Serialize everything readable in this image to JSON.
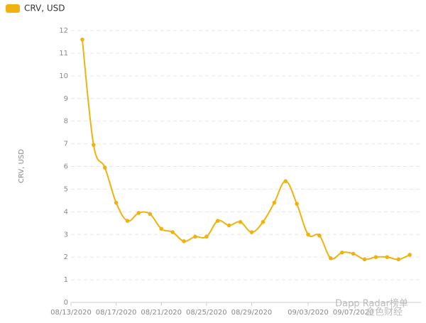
{
  "chart_data": {
    "type": "line",
    "y_axis_label": "CRV, USD",
    "x": [
      "08/14/2020",
      "08/15/2020",
      "08/16/2020",
      "08/17/2020",
      "08/18/2020",
      "08/19/2020",
      "08/20/2020",
      "08/21/2020",
      "08/22/2020",
      "08/23/2020",
      "08/24/2020",
      "08/25/2020",
      "08/26/2020",
      "08/27/2020",
      "08/28/2020",
      "08/29/2020",
      "08/30/2020",
      "08/31/2020",
      "09/01/2020",
      "09/02/2020",
      "09/03/2020",
      "09/04/2020",
      "09/05/2020",
      "09/06/2020",
      "09/07/2020",
      "09/08/2020",
      "09/09/2020",
      "09/10/2020",
      "09/11/2020",
      "09/12/2020"
    ],
    "series": [
      {
        "name": "CRV, USD",
        "color": "#f0b20e",
        "values": [
          11.6,
          6.95,
          5.95,
          4.4,
          3.6,
          3.95,
          3.9,
          3.25,
          3.1,
          2.7,
          2.9,
          2.9,
          3.6,
          3.4,
          3.55,
          3.1,
          3.55,
          4.4,
          5.35,
          4.35,
          3.0,
          2.95,
          1.95,
          2.2,
          2.15,
          1.9,
          2.0,
          2.0,
          1.9,
          2.1
        ]
      }
    ],
    "xlim": [
      "08/13/2020",
      "09/13/2020"
    ],
    "xticks": [
      "08/13/2020",
      "08/17/2020",
      "08/21/2020",
      "08/25/2020",
      "08/29/2020",
      "09/03/2020",
      "09/07/2020"
    ],
    "ylim": [
      0,
      12
    ],
    "yticks": [
      0,
      1,
      2,
      3,
      4,
      5,
      6,
      7,
      8,
      9,
      10,
      11,
      12
    ],
    "grid": true,
    "legend_position": "top-left",
    "watermarks": [
      "Dapp Radar榜单",
      "金色财经"
    ]
  }
}
